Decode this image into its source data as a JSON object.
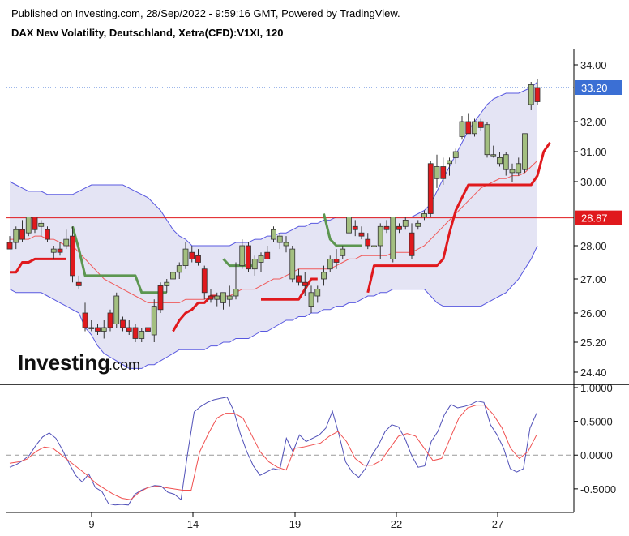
{
  "header": {
    "published": "Published on Investing.com, 28/Sep/2022 - 9:59:16 GMT, Powered by TradingView.",
    "symbol": "DAX New Volatility, Deutschland, Xetra(CFD):V1XI, 120"
  },
  "logo": {
    "main": "Investing",
    "suffix": ".com"
  },
  "colors": {
    "bull": "#a3bf80",
    "bear": "#e0191d",
    "band_fill": "#e4e4f4",
    "band_line": "#5858e0",
    "ma_line": "#f05a5a",
    "stop_up": "#5c9650",
    "stop_down": "#e0191d",
    "osc_main": "#5050b8",
    "osc_signal": "#f05050",
    "price_badge": "#3b6fd4",
    "level_badge": "#e0191d"
  },
  "chart_data": [
    {
      "type": "candlestick",
      "title": "DAX New Volatility, Deutschland, Xetra(CFD):V1XI, 120",
      "y_ticks": [
        "34.00",
        "32.00",
        "31.00",
        "30.00",
        "28.00",
        "27.00",
        "26.00",
        "25.20",
        "24.40"
      ],
      "x_ticks": [
        {
          "label": "9",
          "day": 9
        },
        {
          "label": "14",
          "day": 14
        },
        {
          "label": "19",
          "day": 19
        },
        {
          "label": "22",
          "day": 22
        },
        {
          "label": "27",
          "day": 27
        }
      ],
      "current_price": {
        "label": "33.20",
        "value": 33.2
      },
      "horizontal_level": {
        "label": "28.87",
        "value": 28.87
      },
      "candles": [
        [
          28.1,
          28.3,
          27.9,
          27.9
        ],
        [
          28.1,
          28.6,
          27.9,
          28.5
        ],
        [
          28.5,
          28.8,
          28.1,
          28.2
        ],
        [
          28.4,
          28.9,
          28.3,
          28.9
        ],
        [
          28.9,
          28.9,
          28.4,
          28.5
        ],
        [
          28.6,
          28.8,
          28.3,
          28.7
        ],
        [
          28.5,
          28.6,
          28.1,
          28.2
        ],
        [
          27.8,
          28.0,
          27.6,
          27.9
        ],
        [
          27.9,
          28.1,
          27.7,
          27.8
        ],
        [
          28.0,
          28.5,
          27.9,
          28.2
        ],
        [
          28.3,
          28.6,
          26.9,
          27.1
        ],
        [
          26.9,
          27.1,
          26.7,
          26.8
        ],
        [
          26.0,
          26.3,
          25.5,
          25.6
        ],
        [
          25.6,
          25.8,
          25.5,
          25.6
        ],
        [
          25.6,
          25.7,
          25.4,
          25.5
        ],
        [
          25.5,
          25.8,
          25.3,
          25.6
        ],
        [
          26.0,
          26.1,
          25.5,
          25.6
        ],
        [
          25.7,
          26.6,
          25.6,
          26.5
        ],
        [
          25.8,
          25.9,
          25.5,
          25.6
        ],
        [
          25.6,
          25.8,
          25.4,
          25.5
        ],
        [
          25.6,
          25.7,
          25.2,
          25.3
        ],
        [
          25.3,
          25.6,
          25.2,
          25.5
        ],
        [
          25.6,
          25.8,
          25.4,
          25.5
        ],
        [
          25.4,
          26.4,
          25.2,
          26.2
        ],
        [
          26.8,
          26.9,
          26.0,
          26.1
        ],
        [
          26.8,
          27.0,
          26.6,
          26.9
        ],
        [
          27.0,
          27.3,
          26.9,
          27.2
        ],
        [
          27.2,
          27.5,
          27.0,
          27.4
        ],
        [
          27.4,
          28.1,
          27.3,
          27.9
        ],
        [
          27.8,
          28.0,
          27.5,
          27.6
        ],
        [
          27.7,
          27.9,
          27.4,
          27.5
        ],
        [
          27.3,
          27.4,
          26.4,
          26.6
        ],
        [
          26.5,
          26.7,
          26.3,
          26.4
        ],
        [
          26.4,
          26.6,
          26.2,
          26.5
        ],
        [
          26.3,
          26.6,
          26.1,
          26.6
        ],
        [
          26.4,
          26.8,
          26.2,
          26.5
        ],
        [
          26.5,
          27.5,
          26.4,
          26.7
        ],
        [
          27.4,
          28.2,
          27.3,
          28.0
        ],
        [
          28.0,
          28.1,
          27.2,
          27.3
        ],
        [
          27.3,
          27.7,
          27.1,
          27.6
        ],
        [
          27.5,
          27.8,
          27.2,
          27.7
        ],
        [
          27.8,
          28.0,
          27.6,
          27.6
        ],
        [
          28.2,
          28.6,
          28.1,
          28.5
        ],
        [
          28.1,
          28.4,
          27.9,
          28.3
        ],
        [
          28.0,
          28.3,
          27.8,
          28.1
        ],
        [
          27.0,
          28.0,
          26.9,
          27.9
        ],
        [
          27.1,
          27.3,
          26.8,
          26.9
        ],
        [
          26.9,
          27.2,
          26.5,
          26.8
        ],
        [
          26.2,
          26.8,
          26.0,
          26.6
        ],
        [
          26.5,
          26.8,
          26.3,
          26.7
        ],
        [
          27.0,
          27.4,
          26.8,
          27.2
        ],
        [
          27.3,
          27.7,
          27.2,
          27.6
        ],
        [
          27.6,
          27.9,
          27.3,
          27.5
        ],
        [
          27.7,
          28.0,
          27.6,
          27.9
        ],
        [
          28.4,
          29.0,
          28.3,
          28.9
        ],
        [
          28.6,
          28.8,
          28.3,
          28.5
        ],
        [
          28.4,
          28.6,
          28.2,
          28.3
        ],
        [
          28.2,
          28.4,
          27.9,
          28.0
        ],
        [
          28.0,
          28.2,
          27.8,
          28.0
        ],
        [
          28.0,
          28.7,
          27.6,
          28.6
        ],
        [
          28.6,
          28.8,
          28.4,
          28.5
        ],
        [
          27.6,
          28.9,
          27.5,
          28.9
        ],
        [
          28.6,
          28.7,
          28.4,
          28.5
        ],
        [
          28.6,
          28.9,
          28.5,
          28.8
        ],
        [
          28.4,
          28.7,
          27.6,
          27.7
        ],
        [
          28.6,
          28.8,
          28.5,
          28.7
        ],
        [
          28.9,
          29.1,
          28.8,
          29.0
        ],
        [
          30.6,
          30.7,
          28.9,
          29.0
        ],
        [
          30.1,
          30.9,
          29.8,
          30.5
        ],
        [
          30.5,
          30.8,
          29.9,
          30.1
        ],
        [
          30.6,
          30.8,
          30.2,
          30.7
        ],
        [
          30.8,
          31.1,
          30.6,
          31.0
        ],
        [
          31.5,
          32.2,
          31.4,
          32.0
        ],
        [
          32.0,
          32.3,
          31.6,
          31.6
        ],
        [
          31.6,
          32.1,
          31.5,
          32.0
        ],
        [
          32.0,
          32.1,
          31.7,
          31.8
        ],
        [
          30.9,
          32.0,
          30.8,
          31.9
        ],
        [
          30.9,
          31.2,
          30.8,
          30.9
        ],
        [
          30.6,
          31.0,
          30.5,
          30.8
        ],
        [
          30.4,
          31.0,
          30.2,
          30.9
        ],
        [
          30.3,
          30.6,
          30.0,
          30.4
        ],
        [
          30.3,
          30.8,
          30.2,
          30.6
        ],
        [
          30.4,
          31.6,
          30.3,
          31.6
        ],
        [
          32.6,
          33.4,
          32.4,
          33.3
        ],
        [
          33.2,
          33.5,
          32.6,
          32.7
        ]
      ],
      "upper_band": [
        30.0,
        29.9,
        29.8,
        29.7,
        29.7,
        29.7,
        29.6,
        29.6,
        29.6,
        29.6,
        29.6,
        29.7,
        29.8,
        29.9,
        29.9,
        29.9,
        29.9,
        29.9,
        29.9,
        29.8,
        29.7,
        29.6,
        29.5,
        29.3,
        29.1,
        28.8,
        28.5,
        28.3,
        28.2,
        28.0,
        28.0,
        28.0,
        28.0,
        28.0,
        28.0,
        28.0,
        28.1,
        28.1,
        28.1,
        28.2,
        28.2,
        28.3,
        28.3,
        28.4,
        28.4,
        28.5,
        28.6,
        28.6,
        28.7,
        28.7,
        28.8,
        28.8,
        28.9,
        28.9,
        28.9,
        28.9,
        28.9,
        28.9,
        28.9,
        28.9,
        28.9,
        28.9,
        28.9,
        28.9,
        28.9,
        29.0,
        29.1,
        29.3,
        29.7,
        30.1,
        30.5,
        30.9,
        31.3,
        31.7,
        32.0,
        32.3,
        32.6,
        32.8,
        32.9,
        33.0,
        33.0,
        33.0,
        33.1,
        33.2,
        33.4
      ],
      "lower_band": [
        26.7,
        26.6,
        26.6,
        26.6,
        26.6,
        26.6,
        26.5,
        26.4,
        26.3,
        26.2,
        26.1,
        26.0,
        25.6,
        25.4,
        25.1,
        24.9,
        24.8,
        24.7,
        24.6,
        24.5,
        24.5,
        24.5,
        24.6,
        24.6,
        24.7,
        24.8,
        24.9,
        25.0,
        25.0,
        25.0,
        25.0,
        25.0,
        25.1,
        25.1,
        25.2,
        25.2,
        25.3,
        25.3,
        25.3,
        25.4,
        25.5,
        25.5,
        25.6,
        25.7,
        25.8,
        25.8,
        25.9,
        25.9,
        26.0,
        26.0,
        26.1,
        26.1,
        26.2,
        26.2,
        26.3,
        26.3,
        26.4,
        26.5,
        26.5,
        26.6,
        26.6,
        26.7,
        26.7,
        26.7,
        26.7,
        26.7,
        26.7,
        26.5,
        26.3,
        26.2,
        26.2,
        26.2,
        26.2,
        26.2,
        26.2,
        26.2,
        26.3,
        26.4,
        26.5,
        26.6,
        26.8,
        27.0,
        27.3,
        27.6,
        28.0
      ],
      "middle_ma": [
        28.2,
        28.2,
        28.2,
        28.2,
        28.3,
        28.3,
        28.2,
        28.2,
        28.1,
        28.0,
        28.0,
        27.8,
        27.6,
        27.4,
        27.2,
        27.0,
        26.9,
        26.8,
        26.7,
        26.6,
        26.5,
        26.4,
        26.3,
        26.3,
        26.3,
        26.3,
        26.3,
        26.3,
        26.4,
        26.4,
        26.4,
        26.4,
        26.5,
        26.5,
        26.5,
        26.5,
        26.6,
        26.7,
        26.7,
        26.7,
        26.8,
        26.9,
        27.0,
        27.0,
        27.1,
        27.2,
        27.3,
        27.3,
        27.3,
        27.3,
        27.3,
        27.3,
        27.4,
        27.5,
        27.6,
        27.6,
        27.7,
        27.7,
        27.7,
        27.7,
        27.7,
        27.8,
        27.8,
        27.8,
        27.8,
        27.9,
        28.0,
        28.2,
        28.4,
        28.6,
        28.8,
        29.0,
        29.2,
        29.4,
        29.6,
        29.8,
        29.9,
        30.0,
        30.1,
        30.1,
        30.2,
        30.2,
        30.3,
        30.5,
        30.7
      ],
      "trailing_stop": [
        {
          "dir": "down",
          "v": [
            27.2,
            27.2,
            27.5,
            27.5,
            27.6,
            27.6,
            27.6,
            27.6,
            27.6,
            27.6
          ]
        },
        {
          "dir": "up",
          "v": [
            28.6,
            27.9,
            27.1,
            27.1,
            27.1,
            27.1,
            27.1,
            27.1,
            27.1,
            27.1,
            27.1,
            26.6,
            26.6,
            26.6,
            26.6,
            26.6
          ]
        },
        {
          "dir": "down",
          "v": [
            25.5,
            25.8,
            26.0,
            26.1,
            26.3,
            26.3,
            26.5,
            26.5
          ]
        },
        {
          "dir": "up",
          "v": [
            27.6,
            27.4,
            27.4,
            27.4,
            27.4,
            27.4
          ]
        },
        {
          "dir": "down",
          "v": [
            26.4,
            26.4,
            26.4,
            26.4,
            26.4,
            26.4,
            26.4,
            26.7,
            27.0,
            27.0
          ]
        },
        {
          "dir": "up",
          "v": [
            29.0,
            28.2,
            28.0,
            28.0,
            28.0,
            28.0,
            28.0
          ]
        },
        {
          "dir": "down",
          "v": [
            26.6,
            27.4,
            27.4,
            27.4,
            27.4,
            27.4,
            27.4,
            27.4,
            27.4,
            27.4,
            27.4,
            27.4,
            27.6,
            28.4,
            29.1,
            29.5,
            29.9,
            29.9,
            29.9,
            29.9,
            29.9,
            29.9,
            29.9,
            29.9,
            29.9,
            29.9,
            29.9,
            30.2,
            31.0,
            31.3
          ]
        }
      ]
    },
    {
      "type": "line",
      "title": "",
      "y_ticks": [
        "1.0000",
        "0.5000",
        "0.0000",
        "-0.5000"
      ],
      "ylim": [
        -0.85,
        1.0
      ],
      "series": [
        {
          "key": "main",
          "values": [
            -0.18,
            -0.14,
            -0.08,
            0.0,
            0.15,
            0.27,
            0.33,
            0.25,
            0.08,
            -0.12,
            -0.3,
            -0.4,
            -0.28,
            -0.48,
            -0.54,
            -0.72,
            -0.74,
            -0.73,
            -0.74,
            -0.58,
            -0.52,
            -0.48,
            -0.45,
            -0.46,
            -0.55,
            -0.58,
            -0.66,
            0.02,
            0.64,
            0.72,
            0.78,
            0.82,
            0.84,
            0.86,
            0.66,
            0.32,
            0.05,
            -0.16,
            -0.3,
            -0.25,
            -0.2,
            -0.22,
            0.25,
            0.05,
            0.3,
            0.2,
            0.25,
            0.3,
            0.4,
            0.65,
            0.3,
            -0.1,
            -0.25,
            -0.33,
            -0.2,
            0.0,
            0.15,
            0.35,
            0.45,
            0.42,
            0.25,
            0.0,
            -0.18,
            -0.16,
            0.2,
            0.35,
            0.6,
            0.75,
            0.7,
            0.72,
            0.75,
            0.8,
            0.78,
            0.45,
            0.3,
            0.1,
            -0.2,
            -0.25,
            -0.2,
            0.4,
            0.62
          ]
        },
        {
          "key": "signal",
          "values": [
            -0.12,
            -0.1,
            -0.06,
            0.05,
            0.12,
            0.1,
            0.0,
            -0.1,
            -0.2,
            -0.3,
            -0.42,
            -0.5,
            -0.58,
            -0.64,
            -0.66,
            -0.55,
            -0.48,
            -0.46,
            -0.48,
            -0.5,
            -0.52,
            -0.52,
            0.05,
            0.32,
            0.55,
            0.62,
            0.62,
            0.55,
            0.3,
            0.05,
            -0.1,
            -0.18,
            -0.22,
            0.1,
            0.12,
            0.15,
            0.18,
            0.28,
            0.35,
            0.2,
            -0.05,
            -0.15,
            -0.15,
            -0.08,
            0.1,
            0.28,
            0.32,
            0.28,
            0.1,
            -0.08,
            -0.05,
            0.25,
            0.55,
            0.7,
            0.74,
            0.74,
            0.6,
            0.4,
            0.1,
            -0.05,
            0.05,
            0.3
          ]
        }
      ]
    }
  ]
}
